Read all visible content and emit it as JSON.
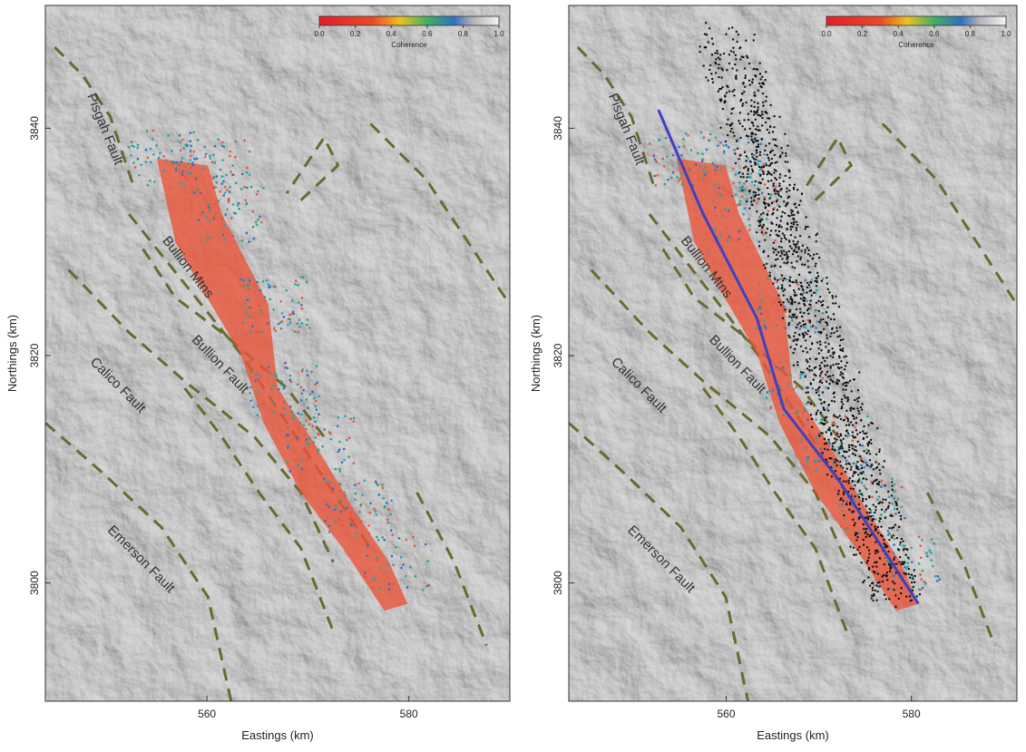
{
  "panels": [
    {
      "xlabel": "Eastings (km)",
      "ylabel": "Northings (km)",
      "xlim": [
        544,
        590
      ],
      "ylim": [
        3789.6,
        3850.8
      ],
      "xticks": [
        560,
        580
      ],
      "yticks": [
        3800,
        3820,
        3840
      ],
      "colorbar": {
        "label": "Coherence",
        "ticks": [
          {
            "value": 0,
            "label": "0.0"
          },
          0.2,
          0.4,
          0.6,
          0.8,
          {
            "value": 1,
            "label": "1.0"
          }
        ]
      },
      "labels": [
        "Pisgah Fault",
        "Bullion Mtns",
        "Bullion Fault",
        "Calico Fault",
        "Emerson Fault"
      ]
    },
    {
      "xlabel": "Eastings (km)",
      "ylabel": "Northings (km)",
      "xlim": [
        543,
        591.4
      ],
      "ylim": [
        3789.6,
        3850.8
      ],
      "xticks": [
        560,
        580
      ],
      "yticks": [
        3800,
        3820,
        3840
      ],
      "colorbar": {
        "label": "Coherence",
        "ticks": [
          {
            "value": 0,
            "label": "0.0"
          },
          0.2,
          0.4,
          0.6,
          0.8,
          {
            "value": 1,
            "label": "1.0"
          }
        ]
      },
      "labels": [
        "Pisgah Fault",
        "Bullion Mtns",
        "Bullion Fault",
        "Calico Fault",
        "Emerson Fault"
      ]
    }
  ]
}
